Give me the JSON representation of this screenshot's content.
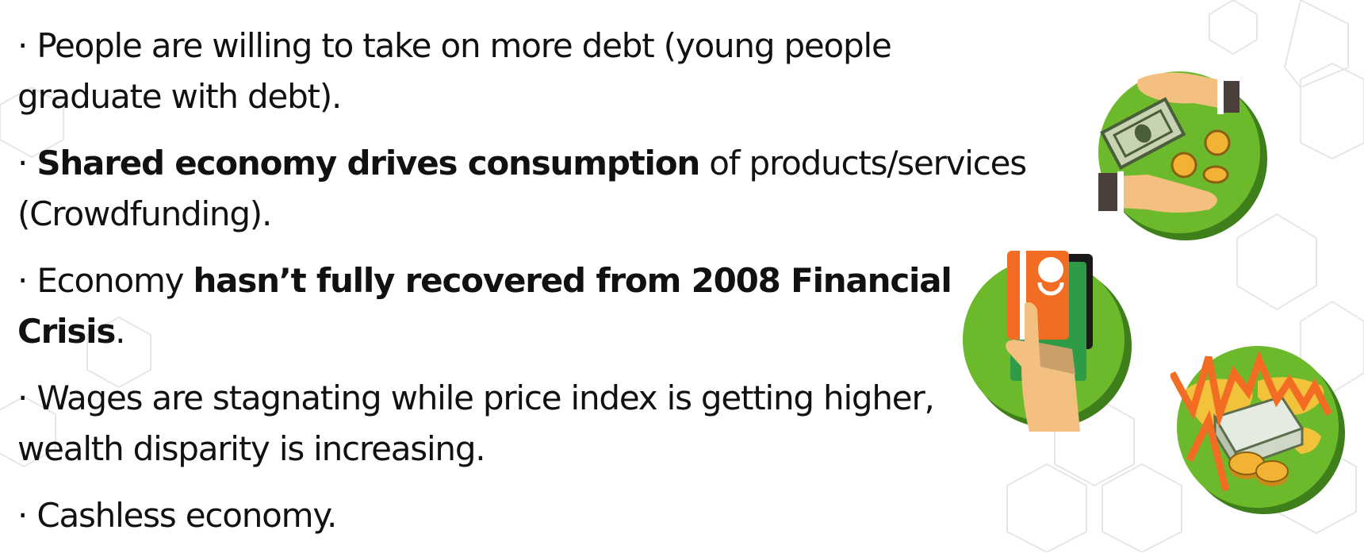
{
  "bullets": [
    {
      "prefix": "· ",
      "text": "People are willing to take on more debt (young people graduate with debt)."
    },
    {
      "prefix": "· ",
      "bold": "Shared economy drives consumption",
      "text": " of products/services (Crowdfunding)."
    },
    {
      "prefix": "· ",
      "pre": "Economy ",
      "bold": "hasn’t fully recovered from 2008 Financial Crisis",
      "text": "."
    },
    {
      "prefix": "· ",
      "text": "Wages are stagnating while price index is getting higher, wealth disparity is increasing."
    },
    {
      "prefix": "· ",
      "text": "Cashless economy."
    }
  ],
  "icons": {
    "money_exchange": "money-exchange-hands-icon",
    "credit_card": "credit-card-hand-icon",
    "market_crash": "market-crash-chart-icon"
  },
  "colors": {
    "circle_green": "#6cba2b",
    "circle_shadow": "#3f7f1b",
    "accent_orange": "#f26c23",
    "skin": "#f3c07f"
  }
}
